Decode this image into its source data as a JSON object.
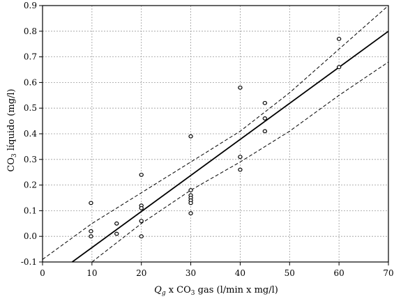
{
  "chart_data": {
    "type": "scatter",
    "xlabel_parts": [
      "Q",
      "g",
      " x CO",
      "3",
      " gas (l/min x mg/l)"
    ],
    "ylabel_parts": [
      "CO",
      "3",
      " líquido (mg/l)"
    ],
    "xlim": [
      0,
      70
    ],
    "ylim": [
      -0.1,
      0.9
    ],
    "x_ticks": [
      0,
      10,
      20,
      30,
      40,
      50,
      60,
      70
    ],
    "y_ticks": [
      -0.1,
      0.0,
      0.1,
      0.2,
      0.3,
      0.4,
      0.5,
      0.6,
      0.7,
      0.8,
      0.9
    ],
    "y_tick_labels": [
      "-0.1",
      "0.0",
      "0.1",
      "0.2",
      "0.3",
      "0.4",
      "0.5",
      "0.6",
      "0.7",
      "0.8",
      "0.9"
    ],
    "x_tick_labels": [
      "0",
      "10",
      "20",
      "30",
      "40",
      "50",
      "60",
      "70"
    ],
    "grid": true,
    "points": [
      {
        "x": 9.8,
        "y": 0.13
      },
      {
        "x": 9.8,
        "y": 0.02
      },
      {
        "x": 9.8,
        "y": 0.0
      },
      {
        "x": 15,
        "y": 0.05
      },
      {
        "x": 15,
        "y": 0.01
      },
      {
        "x": 20,
        "y": 0.24
      },
      {
        "x": 20,
        "y": 0.12
      },
      {
        "x": 20,
        "y": 0.11
      },
      {
        "x": 20,
        "y": 0.06
      },
      {
        "x": 20,
        "y": 0.0
      },
      {
        "x": 30,
        "y": 0.39
      },
      {
        "x": 30,
        "y": 0.18
      },
      {
        "x": 30,
        "y": 0.16
      },
      {
        "x": 30,
        "y": 0.15
      },
      {
        "x": 30,
        "y": 0.14
      },
      {
        "x": 30,
        "y": 0.13
      },
      {
        "x": 30,
        "y": 0.09
      },
      {
        "x": 40,
        "y": 0.58
      },
      {
        "x": 40,
        "y": 0.31
      },
      {
        "x": 40,
        "y": 0.26
      },
      {
        "x": 45,
        "y": 0.52
      },
      {
        "x": 45,
        "y": 0.46
      },
      {
        "x": 45,
        "y": 0.41
      },
      {
        "x": 60,
        "y": 0.77
      },
      {
        "x": 60,
        "y": 0.66
      }
    ],
    "fit_line": {
      "x": [
        6,
        70
      ],
      "y": [
        -0.1,
        0.8
      ]
    },
    "confidence_upper": [
      {
        "x": 0,
        "y": -0.09
      },
      {
        "x": 10,
        "y": 0.05
      },
      {
        "x": 20,
        "y": 0.17
      },
      {
        "x": 30,
        "y": 0.29
      },
      {
        "x": 40,
        "y": 0.41
      },
      {
        "x": 50,
        "y": 0.56
      },
      {
        "x": 60,
        "y": 0.73
      },
      {
        "x": 70,
        "y": 0.9
      }
    ],
    "confidence_lower": [
      {
        "x": 10,
        "y": -0.1
      },
      {
        "x": 20,
        "y": 0.05
      },
      {
        "x": 30,
        "y": 0.18
      },
      {
        "x": 40,
        "y": 0.29
      },
      {
        "x": 50,
        "y": 0.41
      },
      {
        "x": 60,
        "y": 0.55
      },
      {
        "x": 70,
        "y": 0.68
      }
    ]
  }
}
